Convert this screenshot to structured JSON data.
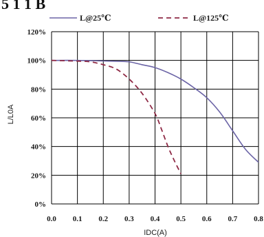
{
  "title_fragment": "5 1 1 B",
  "chart_data": {
    "type": "line",
    "title": "",
    "xlabel": "IDC(A)",
    "ylabel": "L/L0A",
    "xlim": [
      0.0,
      0.8
    ],
    "ylim": [
      0,
      120
    ],
    "x_ticks": [
      "0.0",
      "0.1",
      "0.2",
      "0.3",
      "0.4",
      "0.5",
      "0.6",
      "0.7",
      "0.8"
    ],
    "y_ticks": [
      "0%",
      "20%",
      "40%",
      "60%",
      "80%",
      "100%",
      "120%"
    ],
    "grid": true,
    "legend_position": "top",
    "series": [
      {
        "name": "L@25℃",
        "color": "#6b64a6",
        "style": "solid",
        "x": [
          0.0,
          0.1,
          0.2,
          0.25,
          0.3,
          0.35,
          0.4,
          0.45,
          0.5,
          0.55,
          0.6,
          0.65,
          0.7,
          0.75,
          0.8
        ],
        "y": [
          100,
          100,
          99.6,
          99.4,
          99,
          97,
          95,
          91.5,
          87,
          81,
          74,
          64,
          51,
          38,
          29
        ]
      },
      {
        "name": "L@125℃",
        "color": "#8e2945",
        "style": "dashed",
        "x": [
          0.0,
          0.1,
          0.15,
          0.2,
          0.25,
          0.3,
          0.35,
          0.4,
          0.425,
          0.45,
          0.475,
          0.5
        ],
        "y": [
          100,
          99.5,
          99,
          97,
          94,
          87,
          77,
          63,
          52,
          40,
          30,
          21
        ]
      }
    ]
  }
}
